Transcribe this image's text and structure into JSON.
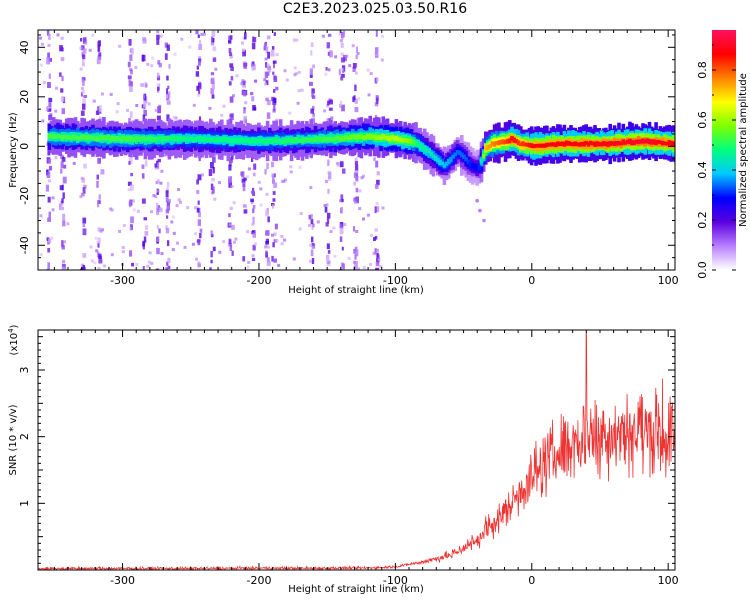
{
  "title": "C2E3.2023.025.03.50.R16",
  "chart_data": [
    {
      "type": "heatmap",
      "xlabel": "Height of straight line (km)",
      "ylabel": "Frequency (Hz)",
      "xlim": [
        -362,
        105
      ],
      "ylim": [
        -50,
        47
      ],
      "xticks": [
        -300,
        -200,
        -100,
        0,
        100
      ],
      "yticks": [
        -40,
        -20,
        0,
        20,
        40
      ],
      "colorbar": {
        "label": "Normalized spectral amplitude",
        "range": [
          0.0,
          0.96
        ],
        "ticks": [
          "0.0",
          "0.2",
          "0.4",
          "0.6",
          "0.8"
        ],
        "colormap": [
          "#ffffff",
          "#b87fff",
          "#5a00e0",
          "#0000ff",
          "#00c8ff",
          "#00ff7f",
          "#7fff00",
          "#ffff00",
          "#ff8000",
          "#ff0000",
          "#ff1060"
        ]
      },
      "ridge": {
        "x": [
          -355,
          -300,
          -250,
          -200,
          -150,
          -120,
          -100,
          -90,
          -85,
          -75,
          -65,
          -55,
          -50,
          -45,
          -40,
          -35,
          -30,
          -20,
          -15,
          -10,
          0,
          20,
          50,
          80,
          105
        ],
        "y": [
          4,
          3,
          3,
          2,
          3,
          4,
          3,
          2,
          1,
          -3,
          -8,
          -2,
          -5,
          -8,
          -9,
          -1,
          1,
          2,
          3,
          1,
          0,
          1,
          1,
          2,
          1
        ],
        "amplitude": [
          0.55,
          0.55,
          0.5,
          0.5,
          0.55,
          0.6,
          0.65,
          0.6,
          0.5,
          0.45,
          0.4,
          0.35,
          0.35,
          0.3,
          0.3,
          0.75,
          0.8,
          0.85,
          0.9,
          0.85,
          0.9,
          0.9,
          0.92,
          0.95,
          0.9
        ]
      },
      "streaks_x": [
        -355,
        -345,
        -330,
        -318,
        -295,
        -285,
        -275,
        -268,
        -245,
        -235,
        -222,
        -212,
        -205,
        -195,
        -190,
        -162,
        -150,
        -140,
        -130,
        -115
      ]
    },
    {
      "type": "line",
      "xlabel": "Height of straight line (km)",
      "ylabel": "SNR (10 * v/v)",
      "multiplier": "(x10^4)",
      "multiplier_base": "(x10",
      "multiplier_exp": "4",
      "multiplier_close": ")",
      "xlim": [
        -362,
        105
      ],
      "ylim": [
        0,
        3.6
      ],
      "xticks": [
        -300,
        -200,
        -100,
        0,
        100
      ],
      "yticks": [
        1,
        2,
        3
      ],
      "color": "#ee3333",
      "envelope": {
        "x": [
          -362,
          -120,
          -100,
          -80,
          -60,
          -40,
          -30,
          -20,
          -10,
          0,
          10,
          20,
          30,
          40,
          50,
          60,
          70,
          80,
          90,
          100,
          105
        ],
        "y": [
          0.02,
          0.03,
          0.05,
          0.12,
          0.22,
          0.45,
          0.65,
          0.85,
          1.15,
          1.4,
          1.6,
          1.8,
          1.9,
          2.0,
          2.05,
          2.05,
          2.1,
          2.1,
          2.05,
          2.0,
          2.0
        ]
      },
      "peak": {
        "x": 40,
        "y": 3.55
      }
    }
  ]
}
